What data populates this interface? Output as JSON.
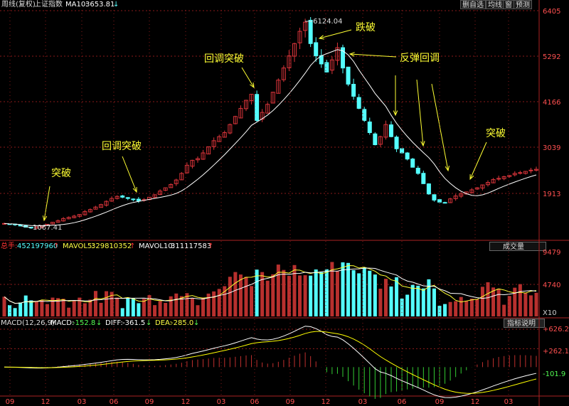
{
  "header": {
    "period": "周线(复权)",
    "symbol": "上证指数",
    "ma_label": "MA10:",
    "ma_value": "3653.81",
    "ma_arrow": "↓",
    "buttons": [
      "删自选",
      "均线",
      "窗",
      "预测"
    ]
  },
  "volume_header": {
    "total_label": "总手:",
    "total_value": "452197960",
    "mavol5_label": "MAVOL5:",
    "mavol5_value": "329810352",
    "mavol10_label": "MAVOL10:",
    "mavol10_value": "311117583",
    "arrow": "↑",
    "dropdown": "成交量"
  },
  "macd_header": {
    "label": "MACD(12,26,9)",
    "macd_label": "MACD:",
    "macd_value": "-152.8",
    "diff_label": "DIFF:",
    "diff_value": "-361.5",
    "dea_label": "DEA:",
    "dea_value": "-285.0",
    "arrow": "↓",
    "help": "指标说明"
  },
  "colors": {
    "up": "#d9343a",
    "down": "#54ffff",
    "ma": "#ffffff",
    "annotation": "#ffff33",
    "grid": "#8a1a1a",
    "axis_text": "#ff5050",
    "macd_line": "#ffffff",
    "dea_line": "#ffff00"
  },
  "chart_data": [
    {
      "type": "candlestick",
      "title": "",
      "price_ticks": [
        6405,
        5292,
        4166,
        3039,
        1913
      ],
      "peak_label": "6124.04",
      "trough_label": "1067.41",
      "x_ticks": [
        "09",
        "12",
        "03",
        "06",
        "09",
        "12",
        "03",
        "06",
        "09",
        "12",
        "03",
        "06",
        "09",
        "12",
        "03"
      ],
      "ma_series_name": "MA10",
      "weekly_close": [
        1180,
        1165,
        1150,
        1120,
        1090,
        1070,
        1095,
        1130,
        1160,
        1210,
        1250,
        1300,
        1330,
        1360,
        1400,
        1470,
        1520,
        1580,
        1640,
        1720,
        1790,
        1840,
        1820,
        1790,
        1760,
        1730,
        1760,
        1820,
        1880,
        1970,
        2050,
        2130,
        2240,
        2400,
        2600,
        2720,
        2760,
        2900,
        3050,
        3200,
        3300,
        3400,
        3600,
        3800,
        4000,
        4200,
        4350,
        3700,
        3900,
        4100,
        4400,
        4700,
        5000,
        5300,
        5600,
        5900,
        6124,
        5600,
        5300,
        5100,
        4900,
        5200,
        5500,
        5000,
        4600,
        4300,
        4000,
        3700,
        3400,
        3100,
        3300,
        3600,
        3300,
        3000,
        2900,
        2750,
        2550,
        2400,
        2150,
        1900,
        1750,
        1700,
        1680,
        1780,
        1850,
        1900,
        1950,
        2000,
        2050,
        2120,
        2180,
        2250,
        2280,
        2320,
        2350,
        2400,
        2420,
        2450,
        2480,
        2500
      ]
    },
    {
      "type": "bar",
      "title": "",
      "volume_ticks": [
        "9479",
        "4740",
        "X10"
      ],
      "series": [
        {
          "name": "总手",
          "last": 452197960
        },
        {
          "name": "MAVOL5",
          "last": 329810352
        },
        {
          "name": "MAVOL10",
          "last": 311117583
        }
      ]
    },
    {
      "type": "line",
      "title": "",
      "macd_ticks": [
        "+626.2",
        "+262.1",
        "-101.9"
      ],
      "series": [
        {
          "name": "DIFF",
          "last": -361.5
        },
        {
          "name": "DEA",
          "last": -285.0
        },
        {
          "name": "MACD",
          "last": -152.8
        }
      ]
    }
  ],
  "annotations": [
    {
      "text": "突破"
    },
    {
      "text": "回调突破"
    },
    {
      "text": "回调突破"
    },
    {
      "text": "跌破"
    },
    {
      "text": "反弹回调"
    },
    {
      "text": "突破"
    }
  ]
}
